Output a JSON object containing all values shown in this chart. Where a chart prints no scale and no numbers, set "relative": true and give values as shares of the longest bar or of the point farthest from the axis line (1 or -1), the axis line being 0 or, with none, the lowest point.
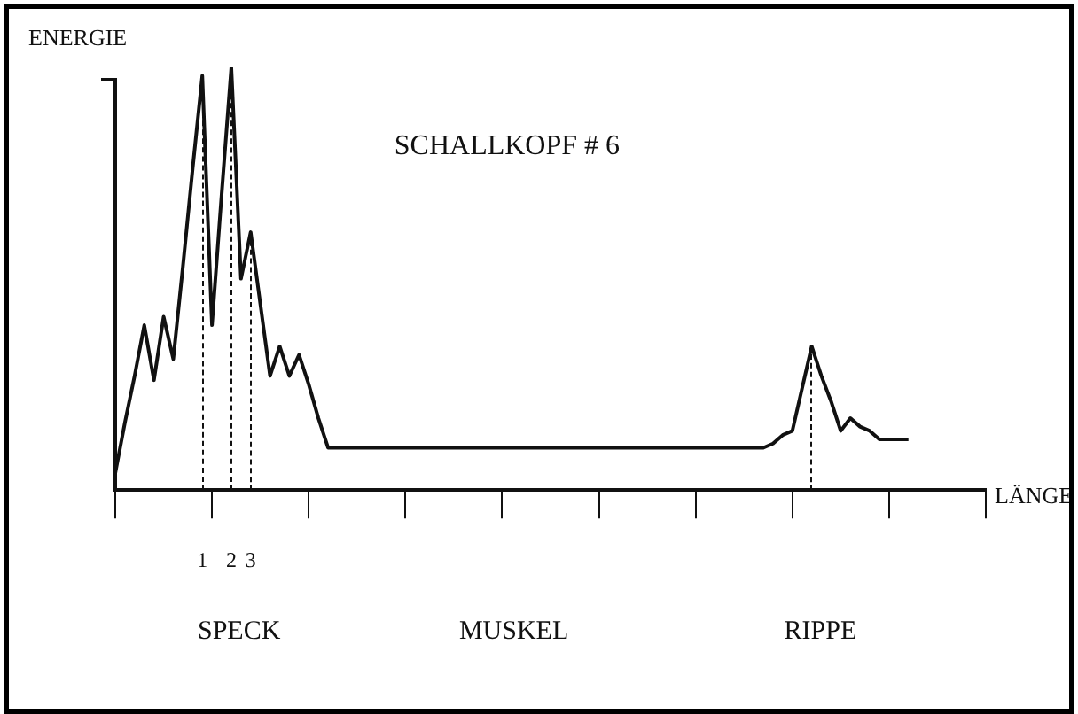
{
  "chart_data": {
    "type": "line",
    "relative": true,
    "title": "SCHALLKOPF # 6",
    "ylabel": "ENERGIE",
    "xlabel": "LÄNGE",
    "categories": [
      null,
      null,
      null,
      null,
      null,
      null,
      null,
      null,
      null,
      null,
      null,
      null,
      null,
      null,
      null,
      null,
      null,
      null,
      null,
      null,
      null,
      null,
      null,
      null,
      null,
      null,
      null,
      null,
      null,
      null,
      null,
      null,
      null,
      null,
      null,
      null,
      null,
      null,
      null,
      null,
      null,
      null,
      null,
      null,
      null,
      null,
      null,
      null,
      null,
      null,
      null,
      null,
      null,
      null,
      null,
      null,
      null,
      null,
      null,
      null,
      null,
      null,
      null,
      null,
      null,
      null,
      null,
      null,
      null,
      null,
      null,
      null,
      null,
      null,
      null,
      null,
      null,
      null,
      null,
      null,
      null,
      null,
      null,
      null,
      null,
      null,
      null,
      null,
      null,
      null,
      null
    ],
    "series": [
      {
        "color": "#111111",
        "values": [
          0.04,
          0.16,
          0.27,
          0.39,
          0.26,
          0.41,
          0.31,
          0.53,
          0.76,
          0.98,
          0.39,
          0.7,
          1.0,
          0.5,
          0.61,
          0.44,
          0.27,
          0.34,
          0.27,
          0.32,
          0.25,
          0.17,
          0.1,
          0.1,
          0.1,
          0.1,
          0.1,
          0.1,
          0.1,
          0.1,
          0.1,
          0.1,
          0.1,
          0.1,
          0.1,
          0.1,
          0.1,
          0.1,
          0.1,
          0.1,
          0.1,
          0.1,
          0.1,
          0.1,
          0.1,
          0.1,
          0.1,
          0.1,
          0.1,
          0.1,
          0.1,
          0.1,
          0.1,
          0.1,
          0.1,
          0.1,
          0.1,
          0.1,
          0.1,
          0.1,
          0.1,
          0.1,
          0.1,
          0.1,
          0.1,
          0.1,
          0.1,
          0.1,
          0.11,
          0.13,
          0.14,
          0.24,
          0.34,
          0.27,
          0.21,
          0.14,
          0.17,
          0.15,
          0.14,
          0.12,
          0.12,
          0.12,
          0.12,
          null,
          null,
          null,
          null,
          null,
          null,
          null,
          null
        ]
      }
    ],
    "annotations": [
      "1",
      "2",
      "3",
      "SPECK",
      "MUSKEL",
      "RIPPE"
    ],
    "grid": false,
    "legend": false,
    "marker": "none",
    "line_style": "solid"
  }
}
